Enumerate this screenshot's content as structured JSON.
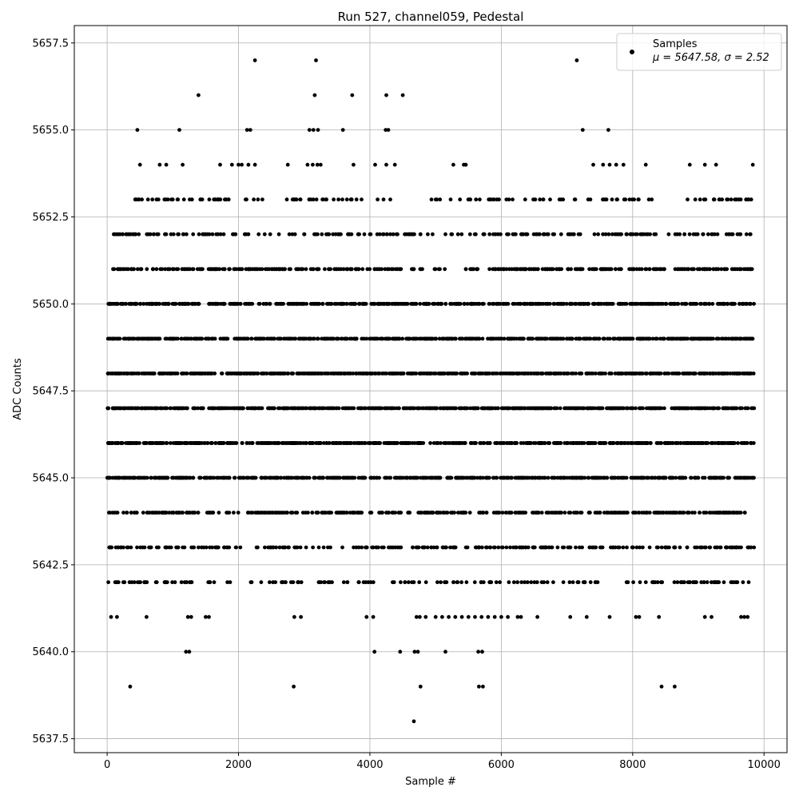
{
  "chart_data": {
    "type": "scatter",
    "title": "Run 527, channel059, Pedestal",
    "xlabel": "Sample #",
    "ylabel": "ADC Counts",
    "xlim": [
      -500,
      10350
    ],
    "ylim": [
      5637.1,
      5658.0
    ],
    "x_ticks": [
      0,
      2000,
      4000,
      6000,
      8000,
      10000
    ],
    "y_ticks": [
      5637.5,
      5640.0,
      5642.5,
      5645.0,
      5647.5,
      5650.0,
      5652.5,
      5655.0,
      5657.5
    ],
    "x_tick_labels": [
      "0",
      "2000",
      "4000",
      "6000",
      "8000",
      "10000"
    ],
    "y_tick_labels": [
      "5637.5",
      "5640.0",
      "5642.5",
      "5645.0",
      "5647.5",
      "5650.0",
      "5652.5",
      "5655.0",
      "5657.5"
    ],
    "grid": true,
    "legend": {
      "placement": "top-right",
      "label": "Samples",
      "stats": "μ = 5647.58, σ = 2.52"
    },
    "series": [
      {
        "name": "Samples",
        "color": "#000000",
        "points": [
          [
            2250,
            5657
          ],
          [
            3180,
            5657
          ],
          [
            7150,
            5657
          ],
          [
            1390,
            5656
          ],
          [
            3160,
            5656
          ],
          [
            3730,
            5656
          ],
          [
            4250,
            5656
          ],
          [
            4500,
            5656
          ],
          [
            460,
            5655
          ],
          [
            1100,
            5655
          ],
          [
            2130,
            5655
          ],
          [
            2180,
            5655
          ],
          [
            3080,
            5655
          ],
          [
            3140,
            5655
          ],
          [
            3210,
            5655
          ],
          [
            3590,
            5655
          ],
          [
            4240,
            5655
          ],
          [
            4280,
            5655
          ],
          [
            7240,
            5655
          ],
          [
            7630,
            5655
          ],
          [
            500,
            5654
          ],
          [
            800,
            5654
          ],
          [
            900,
            5654
          ],
          [
            1150,
            5654
          ],
          [
            1720,
            5654
          ],
          [
            1900,
            5654
          ],
          [
            2000,
            5654
          ],
          [
            2050,
            5654
          ],
          [
            2150,
            5654
          ],
          [
            2250,
            5654
          ],
          [
            2750,
            5654
          ],
          [
            3050,
            5654
          ],
          [
            3130,
            5654
          ],
          [
            3200,
            5654
          ],
          [
            3250,
            5654
          ],
          [
            3750,
            5654
          ],
          [
            4080,
            5654
          ],
          [
            4250,
            5654
          ],
          [
            4380,
            5654
          ],
          [
            5270,
            5654
          ],
          [
            5430,
            5654
          ],
          [
            5460,
            5654
          ],
          [
            7400,
            5654
          ],
          [
            7550,
            5654
          ],
          [
            7650,
            5654
          ],
          [
            7750,
            5654
          ],
          [
            7860,
            5654
          ],
          [
            8200,
            5654
          ],
          [
            8870,
            5654
          ],
          [
            9100,
            5654
          ],
          [
            9270,
            5654
          ],
          [
            9830,
            5654
          ],
          [
            60,
            5641
          ],
          [
            150,
            5641
          ],
          [
            600,
            5641
          ],
          [
            1230,
            5641
          ],
          [
            1280,
            5641
          ],
          [
            1500,
            5641
          ],
          [
            1550,
            5641
          ],
          [
            2850,
            5641
          ],
          [
            2950,
            5641
          ],
          [
            3950,
            5641
          ],
          [
            4050,
            5641
          ],
          [
            4710,
            5641
          ],
          [
            4760,
            5641
          ],
          [
            4850,
            5641
          ],
          [
            5000,
            5641
          ],
          [
            5100,
            5641
          ],
          [
            5200,
            5641
          ],
          [
            5300,
            5641
          ],
          [
            5400,
            5641
          ],
          [
            5500,
            5641
          ],
          [
            5600,
            5641
          ],
          [
            5700,
            5641
          ],
          [
            5800,
            5641
          ],
          [
            5900,
            5641
          ],
          [
            6000,
            5641
          ],
          [
            6100,
            5641
          ],
          [
            6250,
            5641
          ],
          [
            6300,
            5641
          ],
          [
            6550,
            5641
          ],
          [
            7050,
            5641
          ],
          [
            7300,
            5641
          ],
          [
            7650,
            5641
          ],
          [
            8050,
            5641
          ],
          [
            8100,
            5641
          ],
          [
            8400,
            5641
          ],
          [
            9100,
            5641
          ],
          [
            9200,
            5641
          ],
          [
            9650,
            5641
          ],
          [
            9700,
            5641
          ],
          [
            9750,
            5641
          ],
          [
            1200,
            5640
          ],
          [
            1250,
            5640
          ],
          [
            4070,
            5640
          ],
          [
            4460,
            5640
          ],
          [
            4680,
            5640
          ],
          [
            4730,
            5640
          ],
          [
            5150,
            5640
          ],
          [
            5650,
            5640
          ],
          [
            5710,
            5640
          ],
          [
            350,
            5639
          ],
          [
            2840,
            5639
          ],
          [
            4770,
            5639
          ],
          [
            5660,
            5639
          ],
          [
            5720,
            5639
          ],
          [
            8440,
            5639
          ],
          [
            8640,
            5639
          ],
          [
            4670,
            5638
          ]
        ],
        "dense_levels": [
          {
            "y": 5653,
            "count": 170,
            "start": 400,
            "end": 9850,
            "gaps": [
              [
                1200,
                1400
              ],
              [
                4400,
                5000
              ],
              [
                5600,
                5800
              ],
              [
                8300,
                8800
              ]
            ]
          },
          {
            "y": 5652,
            "count": 230,
            "start": 100,
            "end": 9850,
            "gaps": [
              [
                4700,
                5200
              ],
              [
                5400,
                5700
              ],
              [
                8500,
                8700
              ]
            ]
          },
          {
            "y": 5651,
            "count": 380,
            "start": 50,
            "end": 9850,
            "gaps": [
              [
                4800,
                5500
              ]
            ]
          },
          {
            "y": 5650,
            "count": 560,
            "start": 0,
            "end": 9850,
            "gaps": []
          },
          {
            "y": 5649,
            "count": 640,
            "start": 0,
            "end": 9850,
            "gaps": []
          },
          {
            "y": 5648,
            "count": 650,
            "start": 0,
            "end": 9850,
            "gaps": []
          },
          {
            "y": 5647,
            "count": 640,
            "start": 0,
            "end": 9850,
            "gaps": []
          },
          {
            "y": 5646,
            "count": 640,
            "start": 0,
            "end": 9850,
            "gaps": []
          },
          {
            "y": 5645,
            "count": 540,
            "start": 0,
            "end": 9850,
            "gaps": []
          },
          {
            "y": 5644,
            "count": 420,
            "start": 0,
            "end": 9750,
            "gaps": []
          },
          {
            "y": 5643,
            "count": 280,
            "start": 0,
            "end": 9850,
            "gaps": [
              [
                2000,
                2200
              ],
              [
                3500,
                3800
              ],
              [
                7800,
                7900
              ]
            ]
          },
          {
            "y": 5642,
            "count": 210,
            "start": 0,
            "end": 9800,
            "gaps": [
              [
                1600,
                2500
              ],
              [
                3000,
                3200
              ],
              [
                7500,
                7900
              ]
            ]
          }
        ]
      }
    ]
  }
}
